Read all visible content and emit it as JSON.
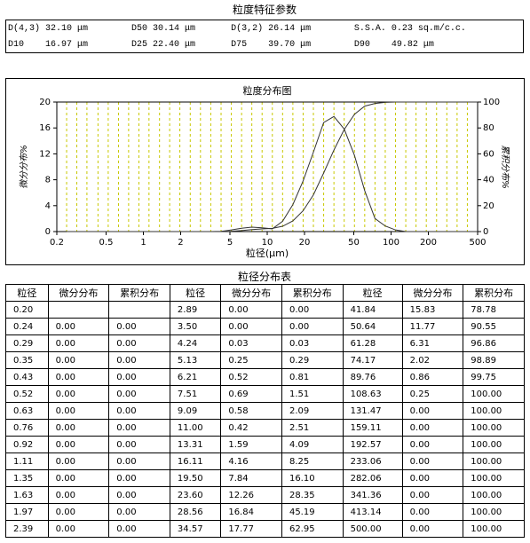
{
  "header": {
    "title": "粒度特征参数"
  },
  "params": {
    "rows": [
      [
        "D(4,3) 32.10 μm",
        "D50 30.14 μm",
        "D(3,2) 26.14 μm",
        "S.S.A. 0.23 sq.m/c.c."
      ],
      [
        "D10    16.97 μm",
        "D25 22.40 μm",
        "D75    39.70 μm",
        "D90    49.82 μm"
      ]
    ]
  },
  "chart": {
    "title": "粒度分布图",
    "y_label": "微分分布%",
    "y2_label": "累积分布%",
    "x_label": "粒径(μm)",
    "xlim": [
      0.2,
      500
    ],
    "xticks": [
      0.2,
      0.5,
      1,
      2,
      5,
      10,
      20,
      50,
      100,
      200,
      500
    ],
    "log_x": true,
    "ylim": [
      0,
      20
    ],
    "yticks": [
      0,
      4,
      8,
      12,
      16,
      20
    ],
    "y2lim": [
      0,
      100
    ],
    "y2ticks": [
      0,
      20,
      40,
      60,
      80,
      100
    ],
    "line_color": "#333333",
    "grid_color": "#c8c800"
  },
  "table": {
    "title": "粒径分布表",
    "headers": [
      "粒径",
      "微分分布",
      "累积分布",
      "粒径",
      "微分分布",
      "累积分布",
      "粒径",
      "微分分布",
      "累积分布"
    ],
    "rows": [
      [
        "0.20",
        null,
        null,
        "2.89",
        "0.00",
        "0.00",
        "41.84",
        "15.83",
        "78.78"
      ],
      [
        "0.24",
        "0.00",
        "0.00",
        "3.50",
        "0.00",
        "0.00",
        "50.64",
        "11.77",
        "90.55"
      ],
      [
        "0.29",
        "0.00",
        "0.00",
        "4.24",
        "0.03",
        "0.03",
        "61.28",
        "6.31",
        "96.86"
      ],
      [
        "0.35",
        "0.00",
        "0.00",
        "5.13",
        "0.25",
        "0.29",
        "74.17",
        "2.02",
        "98.89"
      ],
      [
        "0.43",
        "0.00",
        "0.00",
        "6.21",
        "0.52",
        "0.81",
        "89.76",
        "0.86",
        "99.75"
      ],
      [
        "0.52",
        "0.00",
        "0.00",
        "7.51",
        "0.69",
        "1.51",
        "108.63",
        "0.25",
        "100.00"
      ],
      [
        "0.63",
        "0.00",
        "0.00",
        "9.09",
        "0.58",
        "2.09",
        "131.47",
        "0.00",
        "100.00"
      ],
      [
        "0.76",
        "0.00",
        "0.00",
        "11.00",
        "0.42",
        "2.51",
        "159.11",
        "0.00",
        "100.00"
      ],
      [
        "0.92",
        "0.00",
        "0.00",
        "13.31",
        "1.59",
        "4.09",
        "192.57",
        "0.00",
        "100.00"
      ],
      [
        "1.11",
        "0.00",
        "0.00",
        "16.11",
        "4.16",
        "8.25",
        "233.06",
        "0.00",
        "100.00"
      ],
      [
        "1.35",
        "0.00",
        "0.00",
        "19.50",
        "7.84",
        "16.10",
        "282.06",
        "0.00",
        "100.00"
      ],
      [
        "1.63",
        "0.00",
        "0.00",
        "23.60",
        "12.26",
        "28.35",
        "341.36",
        "0.00",
        "100.00"
      ],
      [
        "1.97",
        "0.00",
        "0.00",
        "28.56",
        "16.84",
        "45.19",
        "413.14",
        "0.00",
        "100.00"
      ],
      [
        "2.39",
        "0.00",
        "0.00",
        "34.57",
        "17.77",
        "62.95",
        "500.00",
        "0.00",
        "100.00"
      ]
    ]
  }
}
